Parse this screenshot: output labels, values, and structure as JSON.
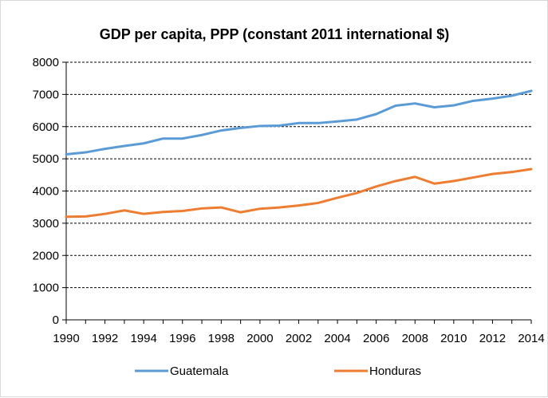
{
  "chart_data": {
    "type": "line",
    "title": "GDP per capita, PPP (constant 2011 international $)",
    "xlabel": "",
    "ylabel": "",
    "x": [
      1990,
      1991,
      1992,
      1993,
      1994,
      1995,
      1996,
      1997,
      1998,
      1999,
      2000,
      2001,
      2002,
      2003,
      2004,
      2005,
      2006,
      2007,
      2008,
      2009,
      2010,
      2011,
      2012,
      2013,
      2014
    ],
    "x_ticks": [
      "1990",
      "1992",
      "1994",
      "1996",
      "1998",
      "2000",
      "2002",
      "2004",
      "2006",
      "2008",
      "2010",
      "2012",
      "2014"
    ],
    "y_ticks": [
      "0",
      "1000",
      "2000",
      "3000",
      "4000",
      "5000",
      "6000",
      "7000",
      "8000"
    ],
    "ylim": [
      0,
      8000
    ],
    "xlim": [
      1990,
      2014
    ],
    "grid": "horizontal dashed",
    "legend_position": "bottom",
    "series": [
      {
        "name": "Guatemala",
        "color": "#5b9bd5",
        "values": [
          5140,
          5200,
          5310,
          5400,
          5480,
          5630,
          5630,
          5740,
          5880,
          5960,
          6020,
          6030,
          6110,
          6110,
          6160,
          6220,
          6390,
          6650,
          6720,
          6600,
          6660,
          6800,
          6870,
          6960,
          7110
        ]
      },
      {
        "name": "Honduras",
        "color": "#ed7d31",
        "values": [
          3200,
          3210,
          3290,
          3400,
          3290,
          3350,
          3380,
          3460,
          3490,
          3340,
          3450,
          3490,
          3550,
          3630,
          3790,
          3940,
          4140,
          4310,
          4440,
          4230,
          4310,
          4420,
          4530,
          4590,
          4680
        ]
      }
    ]
  }
}
